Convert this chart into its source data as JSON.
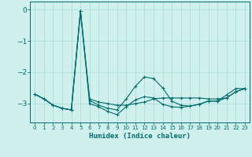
{
  "title": "",
  "xlabel": "Humidex (Indice chaleur)",
  "background_color": "#cff0ec",
  "grid_color": "#aaddda",
  "line_color": "#006b6b",
  "xlim": [
    -0.5,
    23.5
  ],
  "ylim": [
    -3.6,
    0.25
  ],
  "yticks": [
    0,
    -1,
    -2,
    -3
  ],
  "xticks": [
    0,
    1,
    2,
    3,
    4,
    5,
    6,
    7,
    8,
    9,
    10,
    11,
    12,
    13,
    14,
    15,
    16,
    17,
    18,
    19,
    20,
    21,
    22,
    23
  ],
  "series1_x": [
    0,
    1,
    2,
    3,
    4,
    5,
    6,
    7,
    8,
    9,
    10,
    11,
    12,
    13,
    14,
    15,
    16,
    17,
    18,
    19,
    20,
    21,
    22,
    23
  ],
  "series1_y": [
    -2.7,
    -2.85,
    -3.05,
    -3.15,
    -3.2,
    -0.05,
    -2.85,
    -2.95,
    -3.0,
    -3.05,
    -3.05,
    -3.0,
    -2.95,
    -2.85,
    -2.82,
    -2.82,
    -2.82,
    -2.82,
    -2.82,
    -2.85,
    -2.85,
    -2.82,
    -2.62,
    -2.52
  ],
  "series2_x": [
    0,
    1,
    2,
    3,
    4,
    5,
    6,
    7,
    8,
    9,
    10,
    11,
    12,
    13,
    14,
    15,
    16,
    17,
    18,
    19,
    20,
    21,
    22,
    23
  ],
  "series2_y": [
    -2.7,
    -2.85,
    -3.05,
    -3.15,
    -3.2,
    -0.05,
    -2.9,
    -3.05,
    -3.15,
    -3.2,
    -2.85,
    -2.45,
    -2.15,
    -2.2,
    -2.5,
    -2.92,
    -3.05,
    -3.08,
    -3.02,
    -2.92,
    -2.92,
    -2.72,
    -2.52,
    -2.52
  ],
  "series3_x": [
    0,
    1,
    2,
    3,
    4,
    5,
    6,
    7,
    8,
    9,
    10,
    11,
    12,
    13,
    14,
    15,
    16,
    17,
    18,
    19,
    20,
    21,
    22,
    23
  ],
  "series3_y": [
    -2.7,
    -2.85,
    -3.05,
    -3.15,
    -3.2,
    -0.05,
    -3.0,
    -3.1,
    -3.25,
    -3.35,
    -3.1,
    -2.88,
    -2.78,
    -2.82,
    -3.02,
    -3.1,
    -3.12,
    -3.08,
    -3.02,
    -2.92,
    -2.92,
    -2.82,
    -2.62,
    -2.52
  ]
}
